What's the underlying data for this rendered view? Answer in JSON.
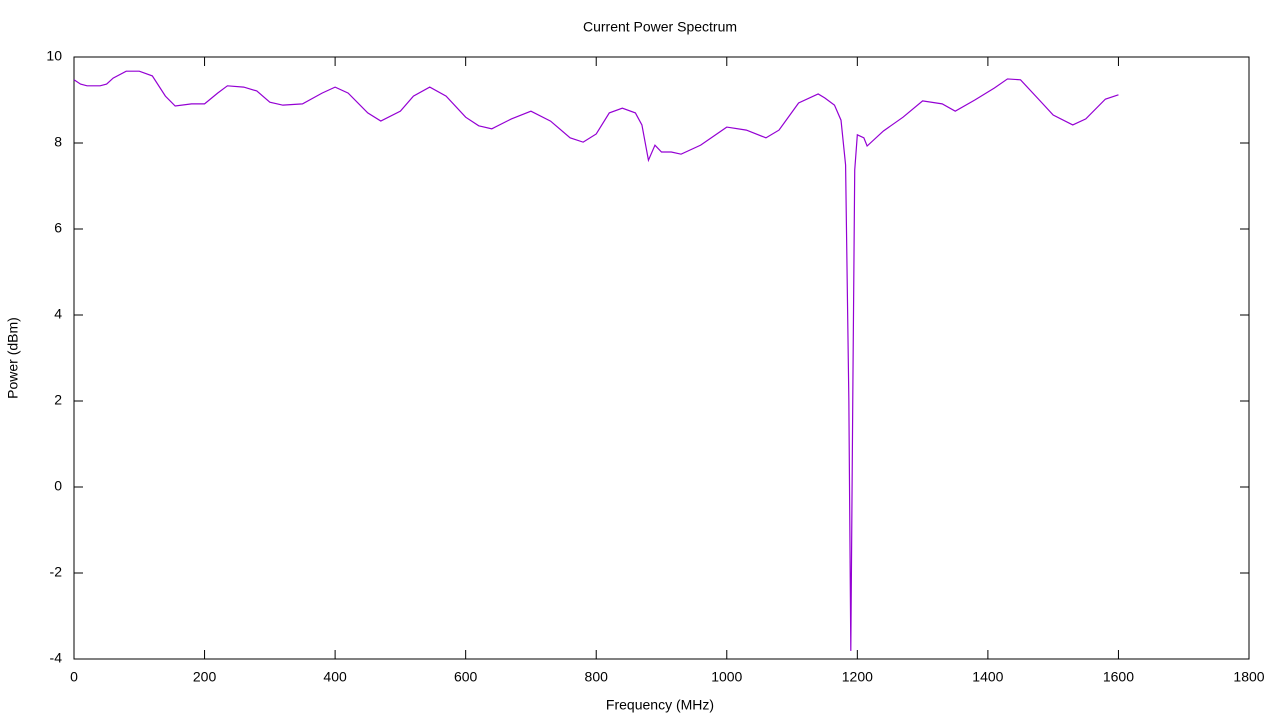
{
  "chart_data": {
    "type": "line",
    "title": "Current Power Spectrum",
    "x_label": "Frequency (MHz)",
    "y_label": "Power (dBm)",
    "x": [
      0,
      10,
      20,
      40,
      50,
      60,
      80,
      100,
      120,
      140,
      155,
      180,
      200,
      220,
      235,
      260,
      280,
      300,
      320,
      350,
      380,
      400,
      420,
      450,
      470,
      500,
      520,
      545,
      570,
      600,
      620,
      640,
      670,
      700,
      730,
      760,
      780,
      800,
      820,
      840,
      860,
      870,
      880,
      890,
      900,
      915,
      930,
      960,
      1000,
      1030,
      1060,
      1080,
      1110,
      1140,
      1150,
      1165,
      1175,
      1182,
      1187,
      1190,
      1193,
      1196,
      1200,
      1210,
      1215,
      1240,
      1270,
      1300,
      1330,
      1350,
      1380,
      1410,
      1430,
      1450,
      1480,
      1500,
      1530,
      1550,
      1580,
      1600
    ],
    "series": [
      {
        "color": "#9400d3",
        "values": [
          9.47,
          9.37,
          9.33,
          9.33,
          9.37,
          9.51,
          9.67,
          9.67,
          9.56,
          9.09,
          8.86,
          8.91,
          8.91,
          9.16,
          9.33,
          9.3,
          9.21,
          8.95,
          8.88,
          8.91,
          9.16,
          9.3,
          9.16,
          8.7,
          8.51,
          8.74,
          9.09,
          9.3,
          9.09,
          8.6,
          8.4,
          8.33,
          8.56,
          8.74,
          8.51,
          8.12,
          8.02,
          8.21,
          8.7,
          8.81,
          8.7,
          8.42,
          7.6,
          7.95,
          7.79,
          7.79,
          7.74,
          7.95,
          8.37,
          8.3,
          8.12,
          8.3,
          8.93,
          9.14,
          9.05,
          8.88,
          8.53,
          7.49,
          2.02,
          -3.81,
          2.02,
          7.37,
          8.19,
          8.12,
          7.93,
          8.28,
          8.6,
          8.98,
          8.91,
          8.74,
          9.0,
          9.28,
          9.49,
          9.47,
          8.98,
          8.65,
          8.42,
          8.56,
          9.02,
          9.12
        ]
      }
    ],
    "xlim": [
      0,
      1800
    ],
    "xticks": [
      0,
      200,
      400,
      600,
      800,
      1000,
      1200,
      1400,
      1600,
      1800
    ],
    "ylim": [
      -4,
      10
    ],
    "yticks": [
      -4,
      -2,
      0,
      2,
      4,
      6,
      8,
      10
    ],
    "grid": false
  }
}
